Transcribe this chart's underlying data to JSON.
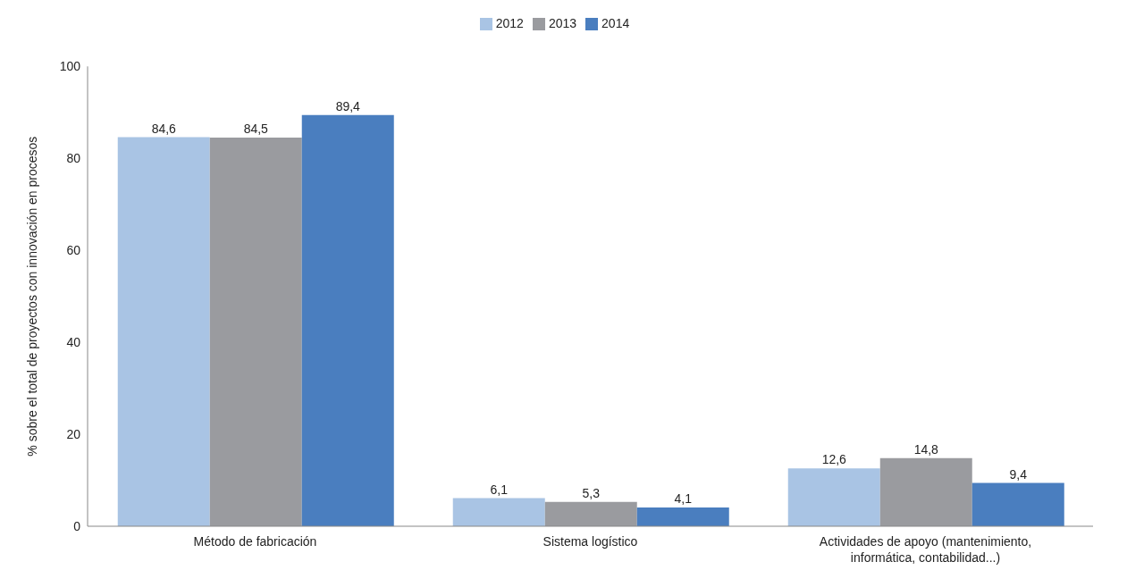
{
  "chart_data": {
    "type": "bar",
    "categories": [
      "Método de fabricación",
      "Sistema logístico",
      "Actividades de apoyo (mantenimiento, informática, contabilidad...)"
    ],
    "series": [
      {
        "name": "2012",
        "color": "#a9c4e4",
        "values": [
          84.6,
          6.1,
          12.6
        ],
        "value_labels": [
          "84,6",
          "6,1",
          "12,6"
        ]
      },
      {
        "name": "2013",
        "color": "#9a9b9f",
        "values": [
          84.5,
          5.3,
          14.8
        ],
        "value_labels": [
          "84,5",
          "5,3",
          "14,8"
        ]
      },
      {
        "name": "2014",
        "color": "#4a7ebf",
        "values": [
          89.4,
          4.1,
          9.4
        ],
        "value_labels": [
          "89,4",
          "4,1",
          "9,4"
        ]
      }
    ],
    "ylabel": "% sobre el total de proyectos con innovación en procesos",
    "ylim": [
      0,
      100
    ],
    "yticks": [
      0,
      20,
      40,
      60,
      80,
      100
    ],
    "legend": "top"
  }
}
